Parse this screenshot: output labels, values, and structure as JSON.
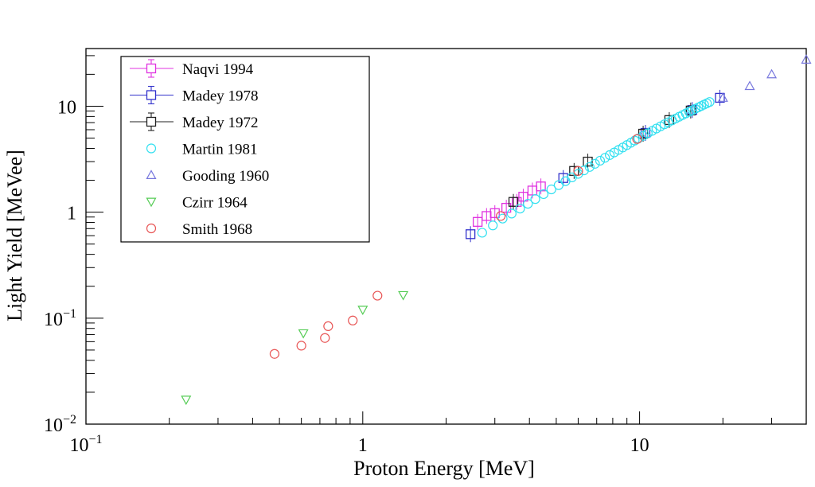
{
  "chart_data": {
    "type": "scatter",
    "xlabel": "Proton Energy [MeV]",
    "ylabel": "Light Yield [MeVee]",
    "xscale": "log",
    "yscale": "log",
    "xlim": [
      0.1,
      40
    ],
    "ylim": [
      0.01,
      35
    ],
    "x_ticks": [
      {
        "value": 0.1,
        "base": "10",
        "exp": "−1"
      },
      {
        "value": 1,
        "base": "1",
        "exp": ""
      },
      {
        "value": 10,
        "base": "10",
        "exp": ""
      }
    ],
    "y_ticks": [
      {
        "value": 0.01,
        "base": "10",
        "exp": "−2"
      },
      {
        "value": 0.1,
        "base": "10",
        "exp": "−1"
      },
      {
        "value": 1,
        "base": "1",
        "exp": ""
      },
      {
        "value": 10,
        "base": "10",
        "exp": ""
      }
    ],
    "legend_position": "top-left",
    "series": [
      {
        "name": "Naqvi 1994",
        "marker": "square",
        "color": "#e033e0",
        "error_bars": true,
        "x": [
          2.6,
          2.8,
          3.0,
          3.3,
          3.6,
          3.8,
          4.1,
          4.4
        ],
        "y": [
          0.81,
          0.92,
          0.98,
          1.1,
          1.25,
          1.4,
          1.6,
          1.75
        ]
      },
      {
        "name": "Madey 1978",
        "marker": "square",
        "color": "#3333cc",
        "error_bars": true,
        "x": [
          2.45,
          5.3,
          10.5,
          15.5,
          19.5
        ],
        "y": [
          0.62,
          2.1,
          5.6,
          9.2,
          12.0
        ]
      },
      {
        "name": "Madey 1972",
        "marker": "square",
        "color": "#222222",
        "error_bars": true,
        "x": [
          3.5,
          5.8,
          6.5,
          10.3,
          12.8,
          15.3
        ],
        "y": [
          1.25,
          2.45,
          3.0,
          5.5,
          7.4,
          9.1
        ]
      },
      {
        "name": "Martin 1981",
        "marker": "circle",
        "color": "#33e0f0",
        "error_bars": false,
        "x": [
          2.7,
          2.95,
          3.2,
          3.45,
          3.7,
          3.95,
          4.2,
          4.5,
          4.8,
          5.1,
          5.4,
          5.7,
          6.0,
          6.3,
          6.6,
          6.9,
          7.2,
          7.5,
          7.8,
          8.1,
          8.4,
          8.7,
          9.0,
          9.3,
          9.6,
          9.9,
          10.3,
          10.7,
          11.1,
          11.5,
          11.9,
          12.3,
          12.7,
          13.1,
          13.5,
          13.9,
          14.3,
          14.7,
          15.1,
          15.5,
          15.9,
          16.3,
          16.7,
          17.1,
          17.5,
          17.9
        ],
        "y": [
          0.64,
          0.75,
          0.87,
          0.97,
          1.08,
          1.2,
          1.33,
          1.48,
          1.64,
          1.8,
          1.96,
          2.13,
          2.3,
          2.48,
          2.67,
          2.86,
          3.06,
          3.26,
          3.46,
          3.66,
          3.87,
          4.08,
          4.3,
          4.52,
          4.74,
          4.96,
          5.25,
          5.55,
          5.85,
          6.15,
          6.45,
          6.75,
          7.05,
          7.35,
          7.65,
          7.95,
          8.25,
          8.55,
          8.85,
          9.15,
          9.45,
          9.75,
          10.05,
          10.35,
          10.65,
          10.95
        ]
      },
      {
        "name": "Gooding 1960",
        "marker": "triangle-up",
        "color": "#7777dd",
        "error_bars": false,
        "x": [
          20,
          25,
          30,
          40
        ],
        "y": [
          12.0,
          15.5,
          20.0,
          27.5
        ]
      },
      {
        "name": "Czirr 1964",
        "marker": "triangle-down",
        "color": "#55cc55",
        "error_bars": false,
        "x": [
          0.23,
          0.61,
          1.0,
          1.4
        ],
        "y": [
          0.017,
          0.072,
          0.12,
          0.165
        ]
      },
      {
        "name": "Smith 1968",
        "marker": "circle",
        "color": "#e85555",
        "error_bars": false,
        "x": [
          0.48,
          0.6,
          0.73,
          0.75,
          0.92,
          1.13,
          3.15,
          6.0,
          9.8
        ],
        "y": [
          0.046,
          0.055,
          0.065,
          0.084,
          0.095,
          0.163,
          0.92,
          2.45,
          4.9
        ]
      }
    ]
  }
}
